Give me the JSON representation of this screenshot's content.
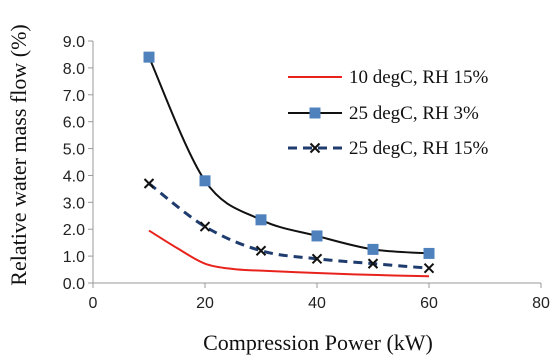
{
  "chart_data": {
    "type": "line",
    "title": "",
    "xlabel": "Compression Power (kW)",
    "ylabel": "Relative water mass flow (%)",
    "xlim": [
      0,
      80
    ],
    "ylim": [
      0,
      9
    ],
    "xticks": [
      0,
      20,
      40,
      60,
      80
    ],
    "xtick_labels": [
      "0",
      "20",
      "40",
      "60",
      "80"
    ],
    "yticks": [
      0,
      1,
      2,
      3,
      4,
      5,
      6,
      7,
      8,
      9
    ],
    "ytick_labels": [
      "0.0",
      "1.0",
      "2.0",
      "3.0",
      "4.0",
      "5.0",
      "6.0",
      "7.0",
      "8.0",
      "9.0"
    ],
    "grid": false,
    "legend_position": "top-right",
    "series": [
      {
        "name": "10 degC, RH 15%",
        "color": "#e8231d",
        "style": "solid",
        "marker": "none",
        "x": [
          10,
          15,
          20,
          25,
          30,
          40,
          50,
          60
        ],
        "y": [
          1.95,
          1.3,
          0.72,
          0.52,
          0.46,
          0.37,
          0.3,
          0.25
        ]
      },
      {
        "name": "25 degC, RH 3%",
        "color": "#111111",
        "style": "solid",
        "marker": "square",
        "marker_color": "#4f81bd",
        "x": [
          10,
          20,
          30,
          40,
          50,
          60
        ],
        "y": [
          8.4,
          3.8,
          2.35,
          1.75,
          1.25,
          1.1
        ]
      },
      {
        "name": "25 degC, RH 15%",
        "color": "#1f3c6e",
        "style": "dashed",
        "marker": "x",
        "marker_color": "#111111",
        "x": [
          10,
          20,
          30,
          40,
          50,
          60
        ],
        "y": [
          3.7,
          2.1,
          1.2,
          0.9,
          0.72,
          0.55
        ]
      }
    ]
  }
}
